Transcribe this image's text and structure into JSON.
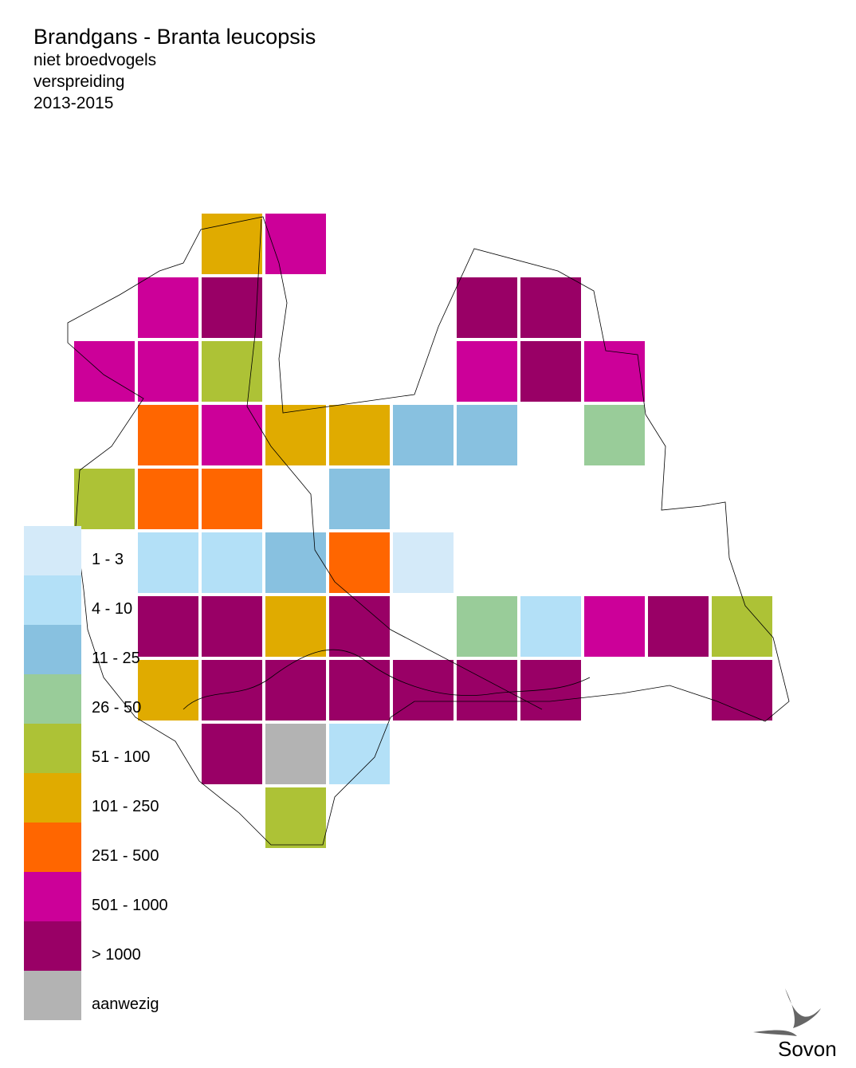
{
  "header": {
    "title": "Brandgans - Branta leucopsis",
    "lines": [
      "niet broedvogels",
      "verspreiding",
      "2013-2015"
    ]
  },
  "legend": [
    {
      "label": "1 - 3",
      "color": "#d4eaf9"
    },
    {
      "label": "4 - 10",
      "color": "#b3e0f7"
    },
    {
      "label": "11 - 25",
      "color": "#88c1e0"
    },
    {
      "label": "26 - 50",
      "color": "#99cc99"
    },
    {
      "label": "51 - 100",
      "color": "#adc236"
    },
    {
      "label": "101 - 250",
      "color": "#e0ab00"
    },
    {
      "label": "251 - 500",
      "color": "#ff6600"
    },
    {
      "label": "501 - 1000",
      "color": "#cc0099"
    },
    {
      "label": "> 1000",
      "color": "#990066"
    },
    {
      "label": "aanwezig",
      "color": "#b3b3b3"
    }
  ],
  "grid": [
    [
      null,
      null,
      5,
      7,
      null,
      null,
      null,
      null,
      null,
      null,
      null
    ],
    [
      null,
      7,
      8,
      null,
      null,
      null,
      8,
      8,
      null,
      null,
      null
    ],
    [
      7,
      7,
      4,
      null,
      null,
      null,
      7,
      8,
      7,
      null,
      null
    ],
    [
      null,
      6,
      7,
      5,
      5,
      2,
      2,
      null,
      3,
      null,
      null
    ],
    [
      4,
      6,
      6,
      null,
      2,
      null,
      null,
      null,
      null,
      null,
      null
    ],
    [
      null,
      1,
      1,
      2,
      6,
      0,
      null,
      null,
      null,
      null,
      null
    ],
    [
      null,
      8,
      8,
      5,
      8,
      null,
      3,
      1,
      7,
      8,
      4
    ],
    [
      null,
      5,
      8,
      8,
      8,
      8,
      8,
      8,
      null,
      null,
      8
    ],
    [
      null,
      null,
      8,
      9,
      1,
      null,
      null,
      null,
      null,
      null,
      null
    ],
    [
      null,
      null,
      null,
      4,
      null,
      null,
      null,
      null,
      null,
      null,
      null
    ]
  ],
  "logo": "Sovon"
}
